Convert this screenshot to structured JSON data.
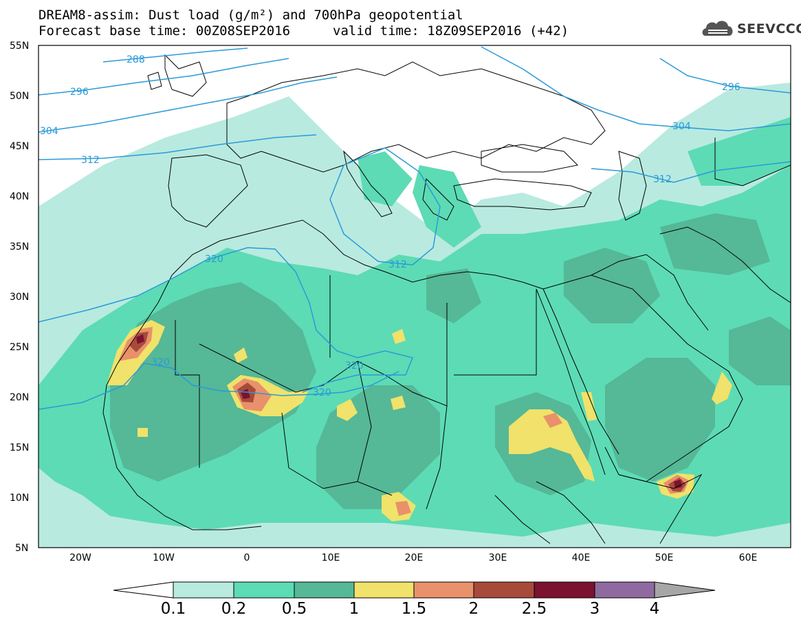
{
  "header": {
    "title_line1": "DREAM8-assim: Dust load (g/m²) and 700hPa geopotential",
    "base_time": "Forecast base time: 00Z08SEP2016",
    "valid_time": "valid time: 18Z09SEP2016 (+42)",
    "logo_text": "SEEVCCC"
  },
  "axes": {
    "lat_labels": [
      "55N",
      "50N",
      "45N",
      "40N",
      "35N",
      "30N",
      "25N",
      "20N",
      "15N",
      "10N",
      "5N"
    ],
    "lon_labels": [
      "20W",
      "10W",
      "0",
      "10E",
      "20E",
      "30E",
      "40E",
      "50E",
      "60E"
    ]
  },
  "contours": {
    "labels": [
      "288",
      "296",
      "304",
      "312",
      "296",
      "304",
      "312",
      "320",
      "320",
      "312",
      "320",
      "320"
    ]
  },
  "colorbar": {
    "labels": [
      "0.1",
      "0.2",
      "0.5",
      "1",
      "1.5",
      "2",
      "2.5",
      "3",
      "4"
    ],
    "colors": [
      "#ffffff",
      "#b8eae0",
      "#5ddbb4",
      "#55b896",
      "#f0e26a",
      "#e9916a",
      "#a84a3a",
      "#7b1230",
      "#8f6aa0",
      "#a6a6a6"
    ]
  },
  "colors": {
    "land_bg": "#ffffff",
    "border": "#000000",
    "geopotential": "#2a9ad8",
    "dust_01": "#b8eae0",
    "dust_02": "#5ddbb4",
    "dust_05": "#55b896",
    "dust_1": "#f0e26a",
    "dust_15": "#e9916a",
    "dust_2": "#a84a3a",
    "dust_25": "#7b1230"
  }
}
